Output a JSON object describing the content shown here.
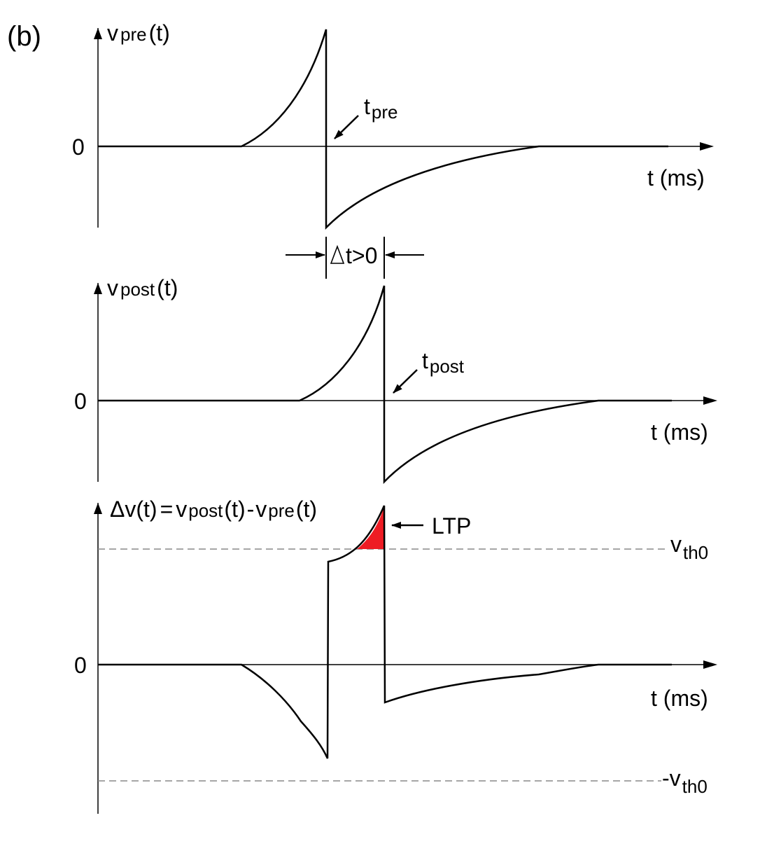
{
  "panel_label": "(b)",
  "colors": {
    "ltp_fill": "#ee1c24",
    "threshold_dash": "#888888",
    "ink": "#000000"
  },
  "top_plot": {
    "y_var": "v",
    "y_sub": "pre",
    "y_arg": "(t)",
    "zero_label": "0",
    "x_label": "t (ms)",
    "marker_main": "t",
    "marker_sub": "pre"
  },
  "delta_t": {
    "label": "t>0"
  },
  "middle_plot": {
    "y_var": "v",
    "y_sub": "post",
    "y_arg": "(t)",
    "zero_label": "0",
    "x_label": "t (ms)",
    "marker_main": "t",
    "marker_sub": "post"
  },
  "bottom_plot": {
    "formula": {
      "lhs": "Δv(t)",
      "eq": "=",
      "v1": "v",
      "sub1": "post",
      "arg1": "(t)",
      "minus": "-",
      "v2": "v",
      "sub2": "pre",
      "arg2": "(t)"
    },
    "zero_label": "0",
    "x_label": "t (ms)",
    "ltp_label": "LTP",
    "threshold_pos": {
      "main": "v",
      "sub": "th0"
    },
    "threshold_neg": {
      "main": "-v",
      "sub": "th0"
    }
  }
}
